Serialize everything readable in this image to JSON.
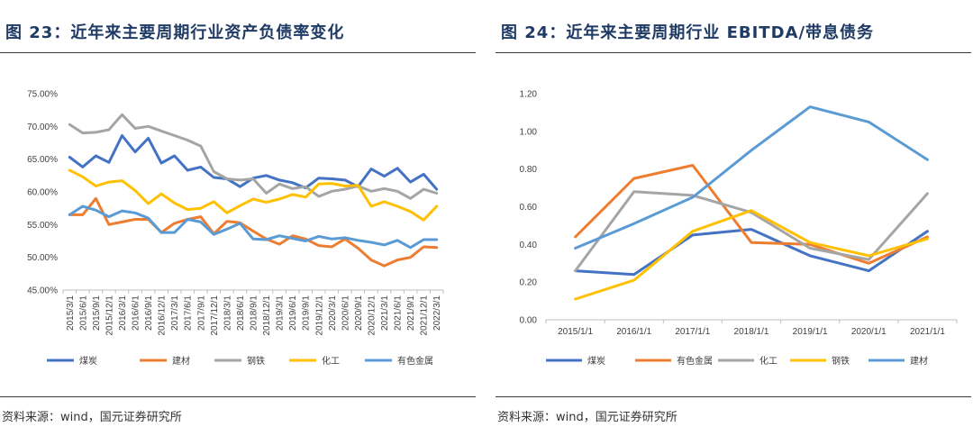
{
  "left": {
    "title": "图 23：近年来主要周期行业资产负债率变化",
    "source": "资料来源：wind，国元证券研究所"
  },
  "right": {
    "title": "图 24：近年来主要周期行业 EBITDA/带息债务",
    "source": "资料来源：wind，国元证券研究所"
  },
  "chart_data": [
    {
      "type": "line",
      "title": "近年来主要周期行业资产负债率变化",
      "x": [
        "2015/3/1",
        "2015/6/1",
        "2015/9/1",
        "2015/12/1",
        "2016/3/1",
        "2016/6/1",
        "2016/9/1",
        "2016/12/1",
        "2017/3/1",
        "2017/6/1",
        "2017/9/1",
        "2017/12/1",
        "2018/3/1",
        "2018/6/1",
        "2018/9/1",
        "2018/12/1",
        "2019/3/1",
        "2019/6/1",
        "2019/9/1",
        "2019/12/1",
        "2020/3/1",
        "2020/6/1",
        "2020/9/1",
        "2020/12/1",
        "2021/3/1",
        "2021/6/1",
        "2021/9/1",
        "2021/12/1",
        "2022/3/1"
      ],
      "xlabel_ticks": [
        "2015/3/1",
        "2015/6/1",
        "2015/9/1",
        "2015/12/1",
        "2016/3/1",
        "2016/6/1",
        "2016/9/1",
        "2016/12/1",
        "2017/3/1",
        "2017/6/1",
        "2017/9/1",
        "2017/12/1",
        "2018/3/1",
        "2018/6/1",
        "2018/9/1",
        "2018/12/1",
        "2019/3/1",
        "2019/6/1",
        "2019/9/1",
        "2019/12/1",
        "2020/3/1",
        "2020/6/1",
        "2020/9/1",
        "2020/12/1",
        "2021/3/1",
        "2021/6/1",
        "2021/9/1",
        "2021/12/1",
        "2022/3/1"
      ],
      "ylim": [
        0.45,
        0.75
      ],
      "yticks": [
        0.45,
        0.5,
        0.55,
        0.6,
        0.65,
        0.7,
        0.75
      ],
      "ytick_labels": [
        "45.00%",
        "50.00%",
        "55.00%",
        "60.00%",
        "65.00%",
        "70.00%",
        "75.00%"
      ],
      "grid": false,
      "legend": "bottom",
      "series": [
        {
          "name": "煤炭",
          "color": "#4472C4",
          "values": [
            65.3,
            63.8,
            65.5,
            64.5,
            68.6,
            66.1,
            68.2,
            64.4,
            65.5,
            63.3,
            63.8,
            62.2,
            62.0,
            60.8,
            62.1,
            62.5,
            61.8,
            61.4,
            60.6,
            62.1,
            62.0,
            61.8,
            60.8,
            63.5,
            62.4,
            63.6,
            61.5,
            62.7,
            60.4
          ]
        },
        {
          "name": "建材",
          "color": "#ED7D31",
          "values": [
            56.5,
            56.5,
            59.0,
            55.0,
            55.4,
            55.8,
            55.8,
            53.8,
            55.2,
            55.8,
            56.2,
            53.6,
            55.5,
            55.3,
            54.0,
            52.8,
            52.0,
            53.3,
            52.8,
            51.8,
            51.6,
            52.8,
            51.4,
            49.6,
            48.7,
            49.6,
            50.0,
            51.6,
            51.5
          ]
        },
        {
          "name": "钢铁",
          "color": "#A5A5A5",
          "values": [
            70.3,
            69.0,
            69.1,
            69.5,
            71.8,
            69.7,
            70.0,
            69.3,
            68.6,
            67.9,
            67.0,
            63.1,
            62.0,
            61.8,
            62.0,
            59.8,
            61.2,
            60.5,
            60.8,
            59.3,
            60.1,
            60.4,
            60.9,
            60.1,
            60.5,
            60.1,
            59.0,
            60.4,
            59.8
          ]
        },
        {
          "name": "化工",
          "color": "#FFC000",
          "values": [
            63.3,
            62.3,
            60.9,
            61.5,
            61.7,
            60.2,
            58.2,
            59.7,
            58.3,
            57.3,
            57.5,
            58.5,
            56.8,
            57.9,
            58.9,
            58.4,
            58.9,
            59.6,
            59.2,
            61.2,
            61.3,
            60.9,
            61.0,
            57.8,
            58.5,
            57.8,
            57.0,
            55.7,
            57.8
          ]
        },
        {
          "name": "有色金属",
          "color": "#5B9BD5",
          "values": [
            56.5,
            57.8,
            57.2,
            56.2,
            57.1,
            56.8,
            56.0,
            53.8,
            53.8,
            55.8,
            55.4,
            53.5,
            54.3,
            55.2,
            52.8,
            52.7,
            53.3,
            52.9,
            52.5,
            53.2,
            52.8,
            53.0,
            52.6,
            52.3,
            51.9,
            52.6,
            51.5,
            52.7,
            52.7
          ]
        }
      ]
    },
    {
      "type": "line",
      "title": "近年来主要周期行业 EBITDA/带息债务",
      "x": [
        "2015/1/1",
        "2016/1/1",
        "2017/1/1",
        "2018/1/1",
        "2019/1/1",
        "2020/1/1",
        "2021/1/1"
      ],
      "ylim": [
        0.0,
        1.2
      ],
      "yticks": [
        0.0,
        0.2,
        0.4,
        0.6,
        0.8,
        1.0,
        1.2
      ],
      "ytick_labels": [
        "0.00",
        "0.20",
        "0.40",
        "0.60",
        "0.80",
        "1.00",
        "1.20"
      ],
      "grid": false,
      "legend": "bottom",
      "series": [
        {
          "name": "煤炭",
          "color": "#4472C4",
          "values": [
            0.26,
            0.24,
            0.45,
            0.48,
            0.34,
            0.26,
            0.47
          ]
        },
        {
          "name": "有色金属",
          "color": "#ED7D31",
          "values": [
            0.44,
            0.75,
            0.82,
            0.41,
            0.4,
            0.3,
            0.44
          ]
        },
        {
          "name": "化工",
          "color": "#A5A5A5",
          "values": [
            0.26,
            0.68,
            0.66,
            0.57,
            0.38,
            0.32,
            0.67
          ]
        },
        {
          "name": "钢铁",
          "color": "#FFC000",
          "values": [
            0.11,
            0.21,
            0.47,
            0.58,
            0.41,
            0.34,
            0.43
          ]
        },
        {
          "name": "建材",
          "color": "#5B9BD5",
          "values": [
            0.38,
            0.51,
            0.65,
            0.9,
            1.13,
            1.05,
            0.85
          ]
        }
      ]
    }
  ]
}
